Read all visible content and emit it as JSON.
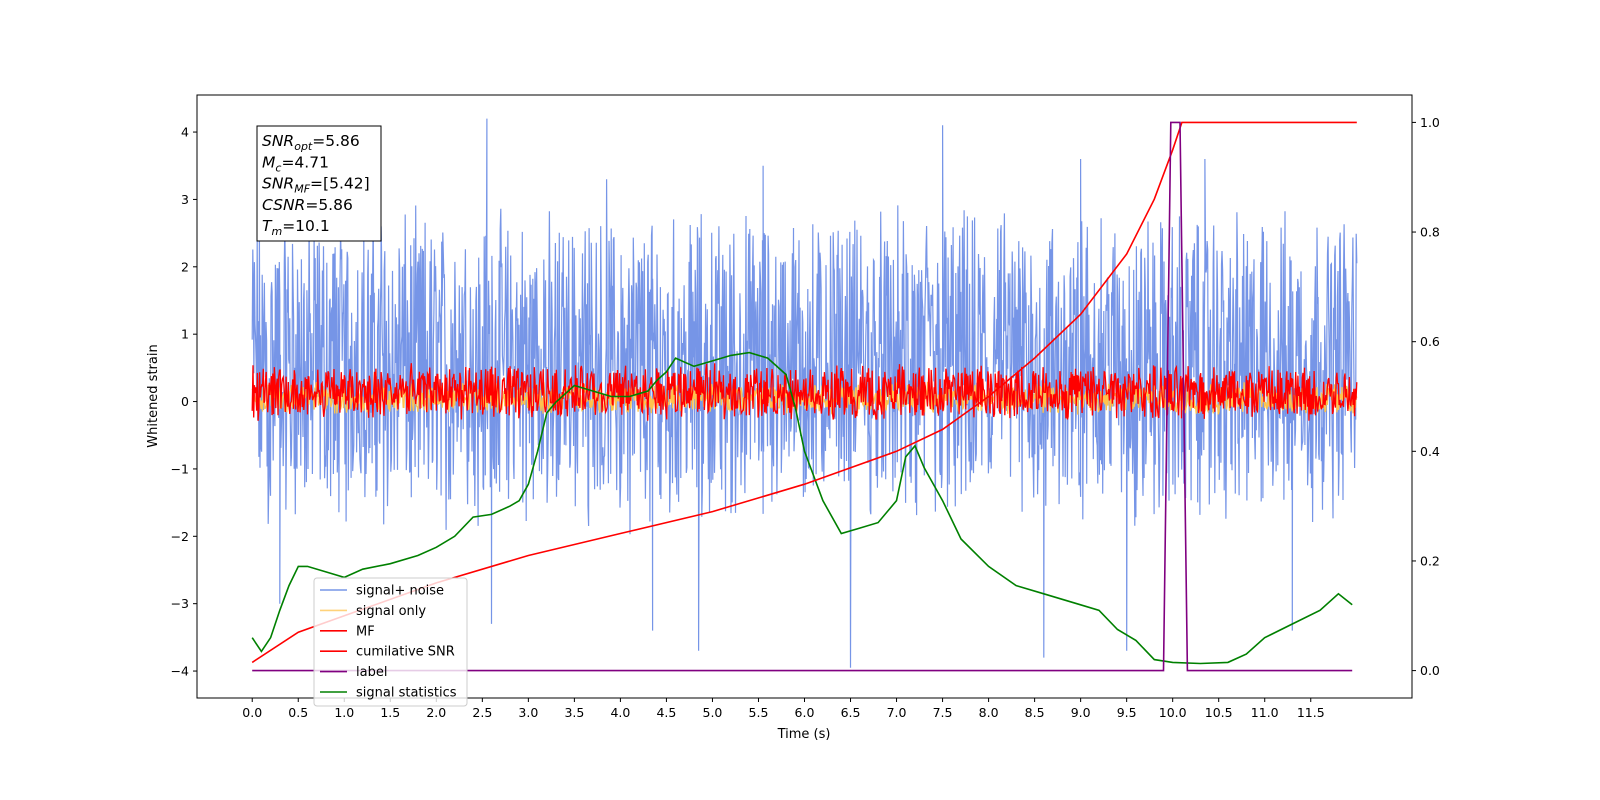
{
  "chart_data": {
    "type": "line",
    "title": "",
    "xlabel": "Time (s)",
    "ylabel_left": "Whitened strain",
    "ylabel_right": "",
    "xlim": [
      -0.6,
      12.6
    ],
    "ylim_left": [
      -4.4,
      4.55
    ],
    "ylim_right": [
      -0.05,
      1.05
    ],
    "x_ticks": [
      "0.0",
      "0.5",
      "1.0",
      "1.5",
      "2.0",
      "2.5",
      "3.0",
      "3.5",
      "4.0",
      "4.5",
      "5.0",
      "5.5",
      "6.0",
      "6.5",
      "7.0",
      "7.5",
      "8.0",
      "8.5",
      "9.0",
      "9.5",
      "10.0",
      "10.5",
      "11.0",
      "11.5"
    ],
    "y_ticks_left": [
      -4,
      -3,
      -2,
      -1,
      0,
      1,
      2,
      3,
      4
    ],
    "y_ticks_right": [
      "0.0",
      "0.2",
      "0.4",
      "0.6",
      "0.8",
      "1.0"
    ],
    "grid": false,
    "legend_position": "lower-left",
    "annotation_box": [
      {
        "sym": "SNR",
        "sub": "opt",
        "value": "=5.86"
      },
      {
        "sym": "M",
        "sub": "c",
        "value": "=4.71"
      },
      {
        "sym": "SNR",
        "sub": "MF",
        "value": "=[5.42]"
      },
      {
        "sym": "CSNR",
        "sub": "",
        "value": "=5.86"
      },
      {
        "sym": "T",
        "sub": "m",
        "value": "=10.1"
      }
    ],
    "series": [
      {
        "name": "signal+ noise",
        "axis": "left",
        "color": "#6f8fe6",
        "x_range": [
          0.0,
          12.0
        ],
        "band": [
          -2.0,
          2.0
        ],
        "spikes": [
          [
            0.3,
            -3.0
          ],
          [
            1.4,
            2.6
          ],
          [
            2.55,
            4.2
          ],
          [
            2.6,
            -3.3
          ],
          [
            3.85,
            3.3
          ],
          [
            4.35,
            -3.4
          ],
          [
            4.85,
            -3.7
          ],
          [
            5.55,
            3.5
          ],
          [
            6.5,
            -3.95
          ],
          [
            7.5,
            4.1
          ],
          [
            8.6,
            -3.8
          ],
          [
            9.0,
            3.6
          ],
          [
            9.5,
            -3.7
          ],
          [
            10.35,
            3.6
          ],
          [
            11.3,
            -3.4
          ]
        ]
      },
      {
        "name": "signal only",
        "axis": "left",
        "color": "#ffc34d",
        "x_range": [
          0.0,
          12.0
        ],
        "band": [
          -0.2,
          0.2
        ]
      },
      {
        "name": "MF",
        "axis": "left",
        "color": "#ff0000",
        "x_range": [
          0.0,
          12.0
        ],
        "band": [
          -0.3,
          0.4
        ]
      },
      {
        "name": "cumilative SNR",
        "axis": "right",
        "color": "#ff0000",
        "x": [
          0.0,
          0.5,
          1.0,
          2.0,
          3.0,
          4.0,
          5.0,
          6.0,
          7.0,
          7.5,
          8.0,
          8.5,
          9.0,
          9.5,
          9.8,
          10.0,
          10.1,
          12.0
        ],
        "y": [
          0.015,
          0.07,
          0.1,
          0.16,
          0.21,
          0.25,
          0.29,
          0.34,
          0.4,
          0.44,
          0.5,
          0.57,
          0.65,
          0.76,
          0.86,
          0.95,
          1.0,
          1.0
        ]
      },
      {
        "name": "label",
        "axis": "right",
        "color": "#800080",
        "x": [
          0.0,
          9.9,
          9.98,
          10.08,
          10.16,
          11.95
        ],
        "y": [
          0.0,
          0.0,
          1.0,
          1.0,
          0.0,
          0.0
        ]
      },
      {
        "name": "signal statistics",
        "axis": "right",
        "color": "#008000",
        "x": [
          0.0,
          0.1,
          0.2,
          0.3,
          0.4,
          0.5,
          0.6,
          0.8,
          1.0,
          1.2,
          1.5,
          1.8,
          2.0,
          2.2,
          2.4,
          2.6,
          2.8,
          2.9,
          3.0,
          3.1,
          3.2,
          3.3,
          3.5,
          3.7,
          3.9,
          4.1,
          4.3,
          4.4,
          4.5,
          4.6,
          4.8,
          5.0,
          5.2,
          5.4,
          5.6,
          5.8,
          5.9,
          6.0,
          6.2,
          6.4,
          6.6,
          6.8,
          7.0,
          7.1,
          7.2,
          7.3,
          7.5,
          7.7,
          8.0,
          8.3,
          8.6,
          8.8,
          9.0,
          9.2,
          9.4,
          9.6,
          9.8,
          10.0,
          10.3,
          10.6,
          10.8,
          11.0,
          11.3,
          11.6,
          11.8,
          11.95
        ],
        "y": [
          0.06,
          0.035,
          0.06,
          0.11,
          0.155,
          0.19,
          0.19,
          0.18,
          0.17,
          0.185,
          0.195,
          0.21,
          0.225,
          0.245,
          0.28,
          0.285,
          0.3,
          0.31,
          0.34,
          0.4,
          0.47,
          0.49,
          0.52,
          0.51,
          0.5,
          0.5,
          0.51,
          0.53,
          0.545,
          0.57,
          0.555,
          0.565,
          0.575,
          0.58,
          0.57,
          0.54,
          0.48,
          0.4,
          0.31,
          0.25,
          0.26,
          0.27,
          0.31,
          0.39,
          0.41,
          0.37,
          0.31,
          0.24,
          0.19,
          0.155,
          0.14,
          0.13,
          0.12,
          0.11,
          0.075,
          0.055,
          0.02,
          0.015,
          0.013,
          0.015,
          0.03,
          0.06,
          0.085,
          0.11,
          0.14,
          0.12
        ]
      }
    ]
  }
}
